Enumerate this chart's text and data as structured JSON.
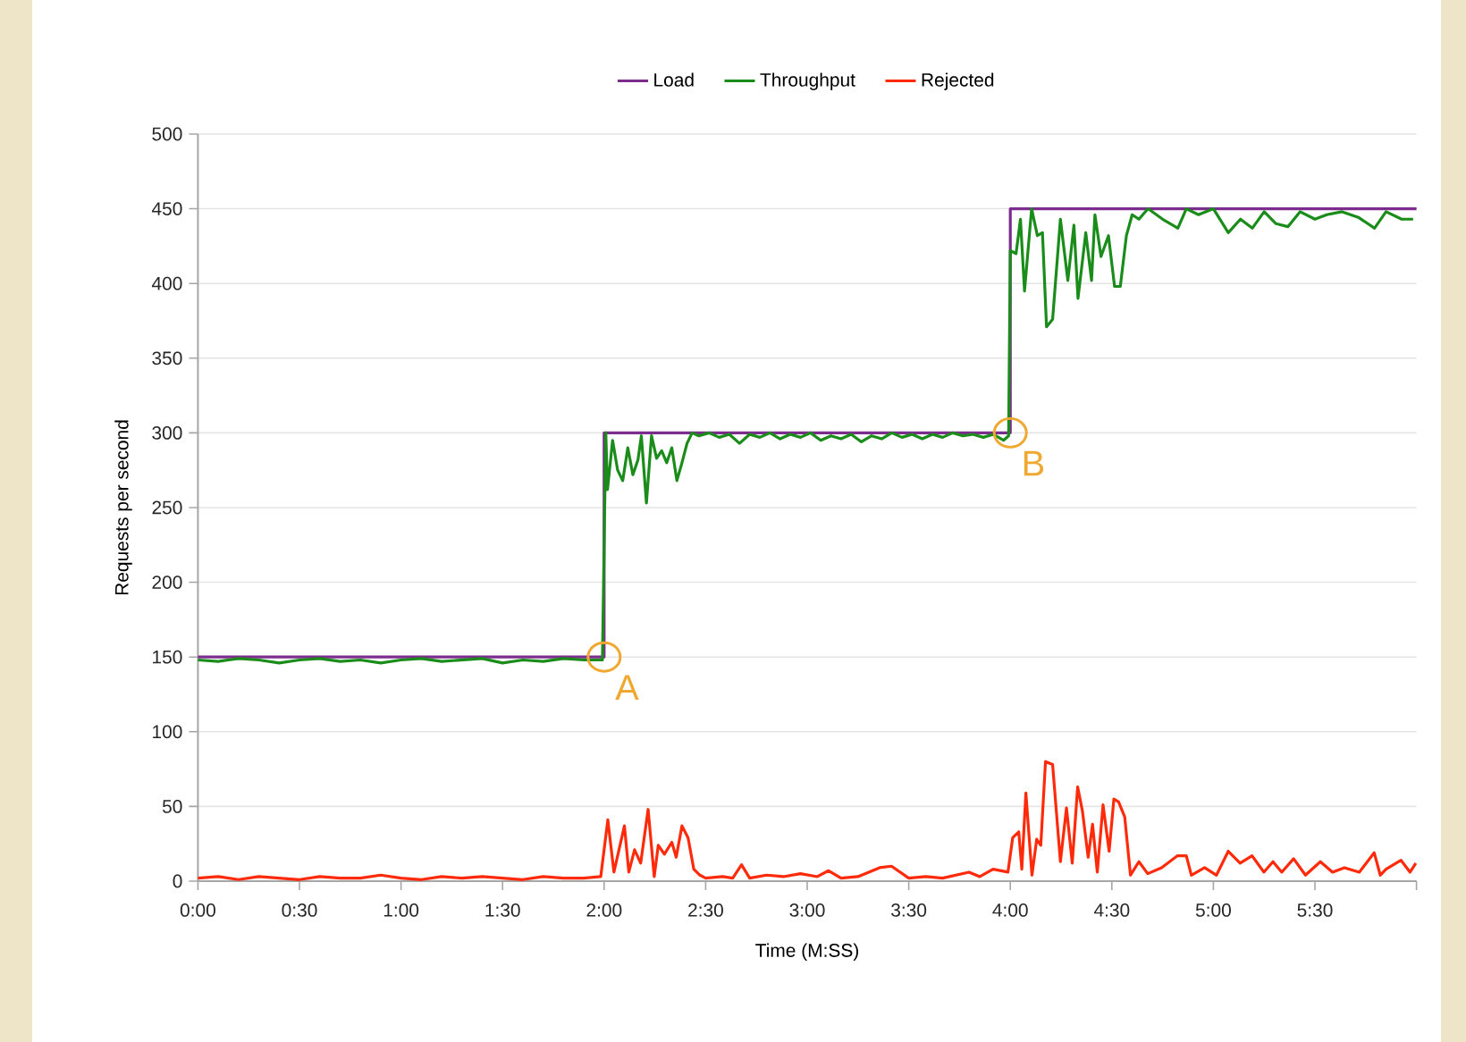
{
  "chart_data": {
    "type": "line",
    "xlabel": "Time (M:SS)",
    "ylabel": "Requests per second",
    "xlim": [
      0,
      360
    ],
    "ylim": [
      0,
      500
    ],
    "xticks": [
      {
        "value": 0,
        "label": "0:00"
      },
      {
        "value": 30,
        "label": "0:30"
      },
      {
        "value": 60,
        "label": "1:00"
      },
      {
        "value": 90,
        "label": "1:30"
      },
      {
        "value": 120,
        "label": "2:00"
      },
      {
        "value": 150,
        "label": "2:30"
      },
      {
        "value": 180,
        "label": "3:00"
      },
      {
        "value": 210,
        "label": "3:30"
      },
      {
        "value": 240,
        "label": "4:00"
      },
      {
        "value": 270,
        "label": "4:30"
      },
      {
        "value": 300,
        "label": "5:00"
      },
      {
        "value": 330,
        "label": "5:30"
      },
      {
        "value": 360,
        "label": null
      }
    ],
    "yticks": [
      0,
      50,
      100,
      150,
      200,
      250,
      300,
      350,
      400,
      450,
      500
    ],
    "grid": "y",
    "legend": "top",
    "marker": "none",
    "line_style": "solid",
    "series": [
      {
        "name": "Load",
        "color": "#7b2c8c",
        "x": [
          0,
          120,
          120,
          240,
          240,
          360
        ],
        "values": [
          150,
          150,
          300,
          300,
          450,
          450
        ]
      },
      {
        "name": "Throughput",
        "color": "#1a8c1a",
        "x": [
          0,
          6,
          12,
          18,
          24,
          30,
          36,
          42,
          48,
          54,
          60,
          66,
          72,
          78,
          84,
          90,
          96,
          102,
          108,
          114,
          119.5,
          120.5,
          121,
          122.5,
          124,
          125.5,
          127,
          128.5,
          130,
          131,
          132.5,
          134,
          135.5,
          137,
          138.5,
          140,
          141.5,
          143,
          144.5,
          146,
          148,
          151,
          154,
          157,
          160,
          163,
          166,
          169,
          172,
          175,
          178,
          181,
          184,
          187,
          190,
          193,
          196,
          199,
          202,
          205,
          208,
          211,
          214,
          217,
          220,
          223,
          226,
          229,
          232,
          235,
          238,
          239.5,
          240,
          241.7,
          243,
          244.2,
          246.3,
          248,
          249.5,
          250.7,
          252.5,
          254.8,
          257,
          258.8,
          260,
          262.3,
          264,
          265,
          266.8,
          269,
          270.8,
          272.5,
          274.3,
          276,
          278,
          280.7,
          285,
          289.5,
          292,
          295.6,
          300,
          304.4,
          308,
          311.5,
          315,
          318.5,
          322,
          325.6,
          330,
          333.5,
          338,
          343,
          347.6,
          351,
          355.6,
          359
        ],
        "values": [
          148,
          147,
          149,
          148,
          146,
          148,
          149,
          147,
          148,
          146,
          148,
          149,
          147,
          148,
          149,
          146,
          148,
          147,
          149,
          148,
          148,
          300,
          262,
          295,
          275,
          268,
          290,
          272,
          282,
          298,
          253,
          298,
          283,
          288,
          280,
          290,
          268,
          280,
          293,
          300,
          298,
          300,
          297,
          299,
          293,
          299,
          297,
          300,
          296,
          299,
          297,
          300,
          295,
          298,
          296,
          299,
          294,
          298,
          296,
          300,
          297,
          299,
          296,
          299,
          297,
          300,
          298,
          299,
          297,
          299,
          295,
          298,
          422,
          420,
          443,
          395,
          450,
          432,
          434,
          371,
          376,
          443,
          402,
          439,
          390,
          434,
          402,
          446,
          418,
          432,
          398,
          398,
          432,
          446,
          443,
          450,
          443,
          437,
          450,
          446,
          450,
          434,
          443,
          437,
          448,
          440,
          438,
          448,
          443,
          446,
          448,
          444,
          437,
          448,
          443,
          443
        ]
      },
      {
        "name": "Rejected",
        "color": "#ff2a0a",
        "x": [
          0,
          6,
          12,
          18,
          24,
          30,
          36,
          42,
          48,
          54,
          60,
          66,
          72,
          78,
          84,
          90,
          96,
          102,
          108,
          114,
          119,
          121.1,
          122.9,
          126,
          127.3,
          129,
          130.8,
          133,
          134.8,
          136,
          137.8,
          140,
          141.3,
          143,
          144.8,
          146.5,
          148.3,
          150,
          155,
          158,
          160.6,
          163,
          168,
          173,
          178,
          183,
          186.3,
          190,
          195,
          201.4,
          204.9,
          210,
          215,
          220,
          227.8,
          231,
          234.9,
          239.3,
          240.7,
          242.5,
          243.4,
          244.6,
          246.4,
          247.8,
          249,
          250.4,
          252.5,
          254.8,
          256.6,
          258.3,
          259.9,
          261.3,
          263,
          264.3,
          265.7,
          267.4,
          269.2,
          270.6,
          272,
          273.8,
          275.5,
          278,
          280.6,
          284.7,
          289.4,
          292,
          293.5,
          297.4,
          300.9,
          304.4,
          307.9,
          311.4,
          314.9,
          317.6,
          320.2,
          323.7,
          327.2,
          331.6,
          335.2,
          338.7,
          343.1,
          347.5,
          349.3,
          351,
          355.4,
          358.1,
          359.8
        ],
        "values": [
          2,
          3,
          1,
          3,
          2,
          1,
          3,
          2,
          2,
          4,
          2,
          1,
          3,
          2,
          3,
          2,
          1,
          3,
          2,
          2,
          3,
          41,
          6,
          37,
          6,
          21,
          12,
          48,
          3,
          24,
          18,
          26,
          16,
          37,
          29,
          8,
          4,
          2,
          3,
          2,
          11,
          2,
          4,
          3,
          5,
          3,
          7,
          2,
          3,
          9,
          10,
          2,
          3,
          2,
          6,
          3,
          8,
          6,
          29,
          33,
          8,
          59,
          4,
          28,
          24,
          80,
          78,
          13,
          49,
          12,
          63,
          47,
          16,
          38,
          6,
          51,
          20,
          55,
          53,
          43,
          4,
          13,
          5,
          9,
          17,
          17,
          4,
          9,
          4,
          20,
          12,
          17,
          6,
          13,
          6,
          15,
          4,
          13,
          6,
          9,
          6,
          19,
          4,
          8,
          14,
          6,
          12
        ]
      }
    ],
    "annotations": [
      {
        "text": "A",
        "x": 120,
        "y": 150
      },
      {
        "text": "B",
        "x": 240,
        "y": 300
      }
    ]
  }
}
